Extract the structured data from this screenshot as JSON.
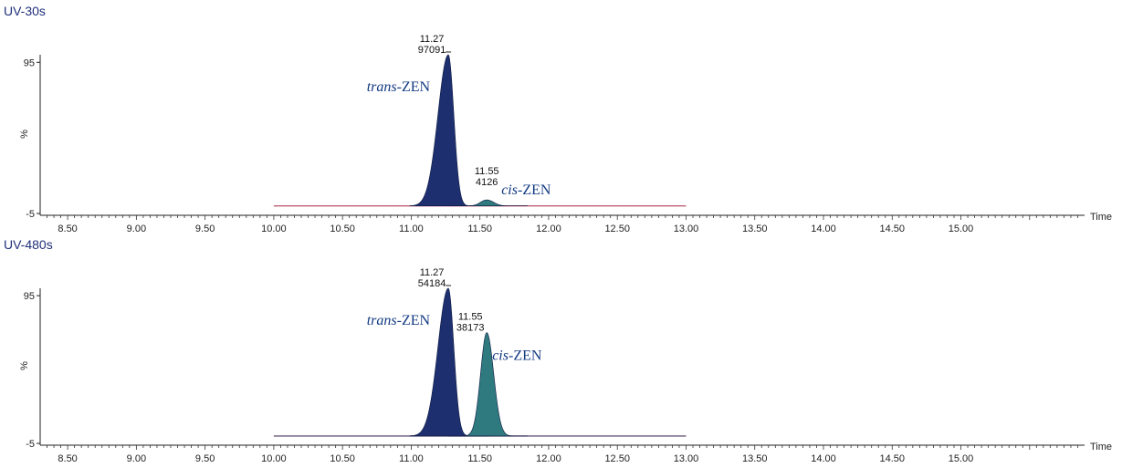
{
  "chart_data": [
    {
      "type": "area",
      "title": "UV-30s",
      "xlabel": "Time",
      "ylabel": "%",
      "xlim": [
        8.3,
        15.9
      ],
      "ylim": [
        -5,
        100
      ],
      "y_ticks": [
        "95",
        "-5"
      ],
      "x_ticks": [
        "8.50",
        "9.00",
        "9.50",
        "10.00",
        "10.50",
        "11.00",
        "11.50",
        "12.00",
        "12.50",
        "13.00",
        "13.50",
        "14.00",
        "14.50",
        "15.00"
      ],
      "baseline": {
        "x_start": 10.0,
        "x_end": 13.0,
        "y": 0
      },
      "peaks": [
        {
          "name": "trans-ZEN",
          "italic_prefix": "trans",
          "suffix": "-ZEN",
          "rt": 11.27,
          "rt_label": "11.27",
          "area_label": "97091",
          "height": 100,
          "color": "#1d2f6e"
        },
        {
          "name": "cis-ZEN",
          "italic_prefix": "cis",
          "suffix": "-ZEN",
          "rt": 11.55,
          "rt_label": "11.55",
          "area_label": "4126",
          "height": 4,
          "color": "#2e7a7e"
        }
      ]
    },
    {
      "type": "area",
      "title": "UV-480s",
      "xlabel": "Time",
      "ylabel": "%",
      "xlim": [
        8.3,
        15.9
      ],
      "ylim": [
        -5,
        100
      ],
      "y_ticks": [
        "95",
        "-5"
      ],
      "x_ticks": [
        "8.50",
        "9.00",
        "9.50",
        "10.00",
        "10.50",
        "11.00",
        "11.50",
        "12.00",
        "12.50",
        "13.00",
        "13.50",
        "14.00",
        "14.50",
        "15.00"
      ],
      "baseline": {
        "x_start": 10.0,
        "x_end": 13.0,
        "y": 0
      },
      "peaks": [
        {
          "name": "trans-ZEN",
          "italic_prefix": "trans",
          "suffix": "-ZEN",
          "rt": 11.27,
          "rt_label": "11.27",
          "area_label": "54184",
          "height": 100,
          "color": "#1d2f6e"
        },
        {
          "name": "cis-ZEN",
          "italic_prefix": "cis",
          "suffix": "-ZEN",
          "rt": 11.55,
          "rt_label": "11.55",
          "area_label": "38173",
          "height": 70,
          "color": "#2e7a7e"
        }
      ]
    }
  ]
}
